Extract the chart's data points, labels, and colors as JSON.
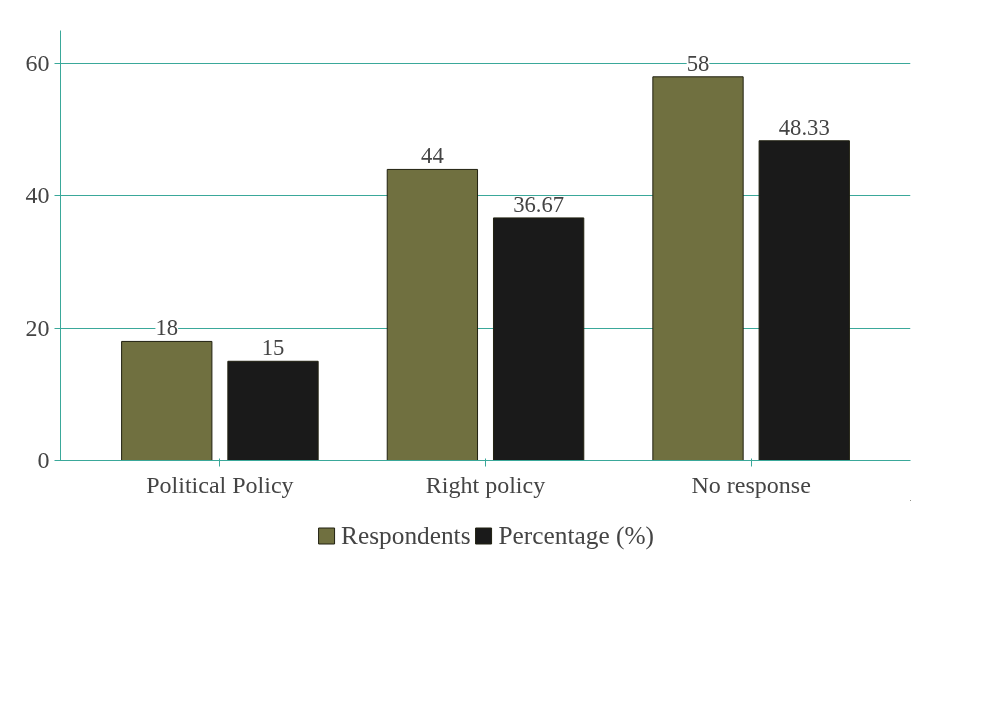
{
  "chart_data": {
    "type": "bar",
    "categories": [
      "Political Policy",
      "Right policy",
      "No response"
    ],
    "series": [
      {
        "name": "Respondents",
        "color": "#707040",
        "values": [
          18,
          44,
          58
        ]
      },
      {
        "name": "Percentage (%)",
        "color": "#1a1a1a",
        "values": [
          15,
          36.67,
          48.33
        ]
      }
    ],
    "ylim": [
      0,
      65
    ],
    "yticks": [
      0,
      20,
      40,
      60
    ],
    "grid": "y",
    "legend": "bottom",
    "data_labels": true
  }
}
